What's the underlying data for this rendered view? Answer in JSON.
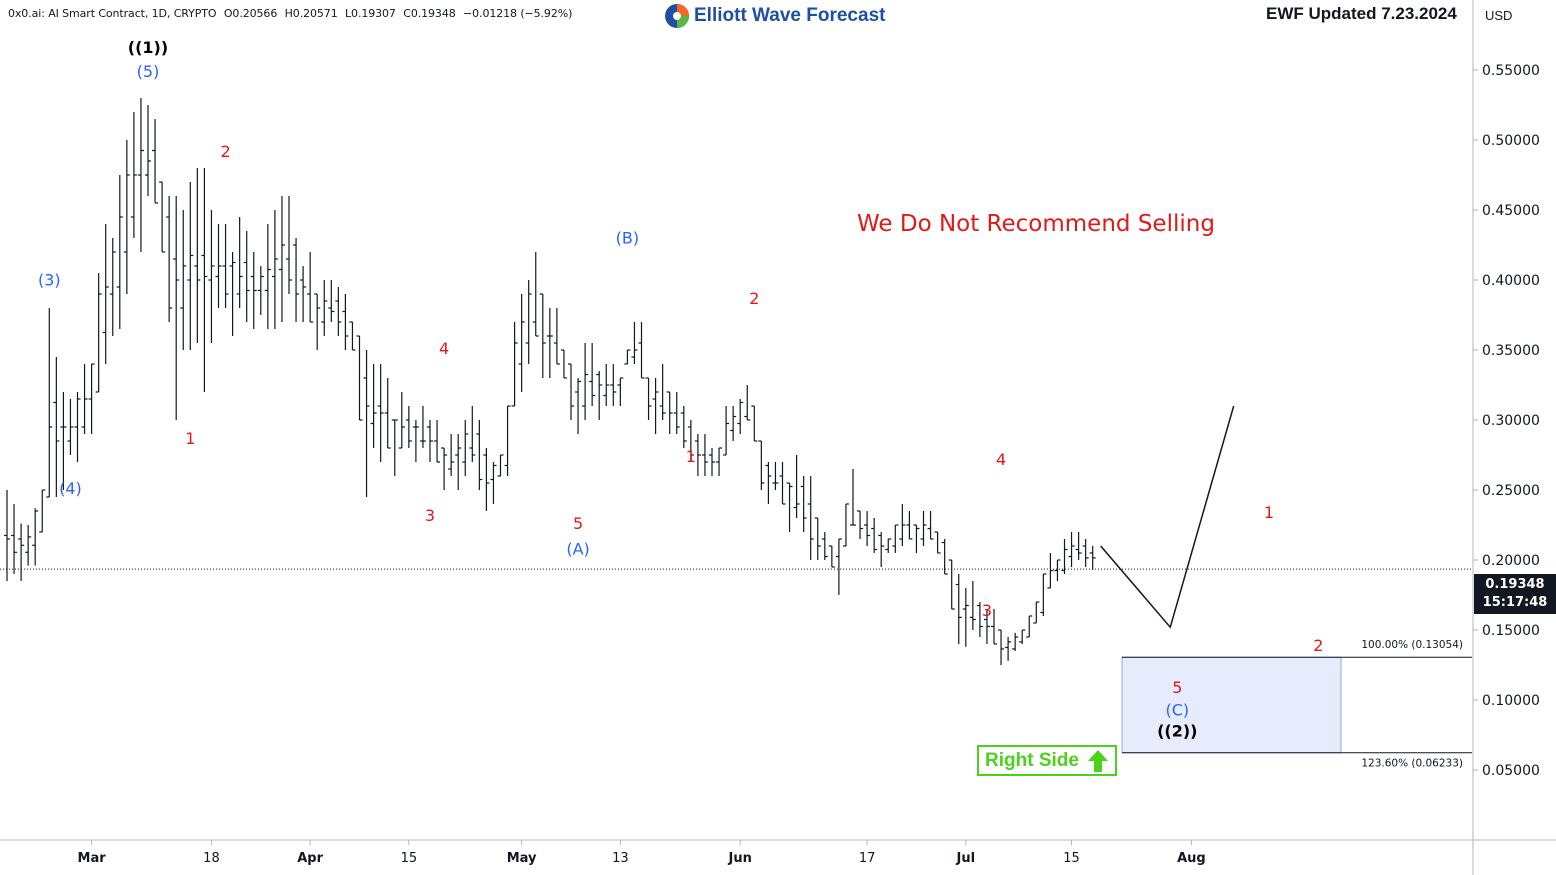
{
  "header": {
    "symbol": "0x0.ai: AI Smart Contract, 1D, CRYPTO",
    "open": "O0.20566",
    "high": "H0.20571",
    "low": "L0.19307",
    "close": "C0.19348",
    "change": "−0.01218 (−5.92%)"
  },
  "logo": {
    "text": "Elliott Wave Forecast",
    "icon": "ewf-swirl-logo-icon"
  },
  "updated_label": "EWF Updated 7.23.2024",
  "currency": "USD",
  "annotation": "We Do Not Recommend Selling",
  "right_side_label": "Right Side",
  "right_side_icon": "up-arrow-icon",
  "last_price": {
    "value": "0.19348",
    "countdown": "15:17:48"
  },
  "chart_data": {
    "type": "ohlc-bar",
    "title": "0x0.ai: AI Smart Contract, 1D, CRYPTO",
    "ylim": [
      0.0,
      0.58
    ],
    "y_ticks": [
      "0.05000",
      "0.10000",
      "0.15000",
      "0.20000",
      "0.25000",
      "0.30000",
      "0.35000",
      "0.40000",
      "0.45000",
      "0.50000",
      "0.55000"
    ],
    "x_ticks": [
      "Mar",
      "18",
      "Apr",
      "15",
      "May",
      "13",
      "Jun",
      "17",
      "Jul",
      "15",
      "Aug"
    ],
    "x_tick_days": [
      12,
      29,
      43,
      57,
      73,
      87,
      104,
      122,
      136,
      151,
      168
    ],
    "last_price_line": 0.19348,
    "series_high_low": [
      [
        0.25,
        0.185
      ],
      [
        0.24,
        0.19
      ],
      [
        0.226,
        0.185
      ],
      [
        0.225,
        0.196
      ],
      [
        0.237,
        0.196
      ],
      [
        0.25,
        0.22
      ],
      [
        0.38,
        0.245
      ],
      [
        0.345,
        0.245
      ],
      [
        0.32,
        0.25
      ],
      [
        0.315,
        0.275
      ],
      [
        0.32,
        0.27
      ],
      [
        0.34,
        0.29
      ],
      [
        0.34,
        0.29
      ],
      [
        0.405,
        0.32
      ],
      [
        0.44,
        0.34
      ],
      [
        0.43,
        0.36
      ],
      [
        0.475,
        0.365
      ],
      [
        0.5,
        0.39
      ],
      [
        0.52,
        0.43
      ],
      [
        0.53,
        0.42
      ],
      [
        0.525,
        0.46
      ],
      [
        0.515,
        0.455
      ],
      [
        0.47,
        0.42
      ],
      [
        0.46,
        0.37
      ],
      [
        0.46,
        0.3
      ],
      [
        0.45,
        0.35
      ],
      [
        0.47,
        0.35
      ],
      [
        0.48,
        0.355
      ],
      [
        0.48,
        0.32
      ],
      [
        0.45,
        0.355
      ],
      [
        0.44,
        0.38
      ],
      [
        0.44,
        0.38
      ],
      [
        0.42,
        0.36
      ],
      [
        0.445,
        0.38
      ],
      [
        0.435,
        0.37
      ],
      [
        0.42,
        0.365
      ],
      [
        0.41,
        0.375
      ],
      [
        0.44,
        0.365
      ],
      [
        0.45,
        0.365
      ],
      [
        0.46,
        0.37
      ],
      [
        0.46,
        0.39
      ],
      [
        0.43,
        0.37
      ],
      [
        0.41,
        0.37
      ],
      [
        0.42,
        0.37
      ],
      [
        0.39,
        0.35
      ],
      [
        0.4,
        0.36
      ],
      [
        0.4,
        0.37
      ],
      [
        0.395,
        0.36
      ],
      [
        0.39,
        0.35
      ],
      [
        0.37,
        0.35
      ],
      [
        0.36,
        0.3
      ],
      [
        0.35,
        0.245
      ],
      [
        0.34,
        0.28
      ],
      [
        0.34,
        0.27
      ],
      [
        0.33,
        0.28
      ],
      [
        0.3,
        0.26
      ],
      [
        0.32,
        0.28
      ],
      [
        0.31,
        0.28
      ],
      [
        0.3,
        0.27
      ],
      [
        0.31,
        0.28
      ],
      [
        0.3,
        0.27
      ],
      [
        0.3,
        0.27
      ],
      [
        0.28,
        0.25
      ],
      [
        0.29,
        0.26
      ],
      [
        0.29,
        0.25
      ],
      [
        0.3,
        0.26
      ],
      [
        0.31,
        0.27
      ],
      [
        0.3,
        0.25
      ],
      [
        0.28,
        0.235
      ],
      [
        0.27,
        0.24
      ],
      [
        0.275,
        0.26
      ],
      [
        0.31,
        0.26
      ],
      [
        0.37,
        0.31
      ],
      [
        0.39,
        0.32
      ],
      [
        0.4,
        0.34
      ],
      [
        0.42,
        0.36
      ],
      [
        0.39,
        0.33
      ],
      [
        0.38,
        0.33
      ],
      [
        0.38,
        0.34
      ],
      [
        0.35,
        0.33
      ],
      [
        0.34,
        0.3
      ],
      [
        0.33,
        0.29
      ],
      [
        0.355,
        0.3
      ],
      [
        0.355,
        0.31
      ],
      [
        0.335,
        0.3
      ],
      [
        0.34,
        0.31
      ],
      [
        0.34,
        0.31
      ],
      [
        0.33,
        0.31
      ],
      [
        0.35,
        0.34
      ],
      [
        0.37,
        0.34
      ],
      [
        0.37,
        0.33
      ],
      [
        0.33,
        0.3
      ],
      [
        0.33,
        0.29
      ],
      [
        0.34,
        0.3
      ],
      [
        0.32,
        0.29
      ],
      [
        0.32,
        0.29
      ],
      [
        0.31,
        0.28
      ],
      [
        0.3,
        0.27
      ],
      [
        0.29,
        0.26
      ],
      [
        0.29,
        0.26
      ],
      [
        0.28,
        0.26
      ],
      [
        0.28,
        0.26
      ],
      [
        0.31,
        0.275
      ],
      [
        0.31,
        0.285
      ],
      [
        0.315,
        0.29
      ],
      [
        0.325,
        0.3
      ],
      [
        0.31,
        0.285
      ],
      [
        0.285,
        0.25
      ],
      [
        0.27,
        0.24
      ],
      [
        0.27,
        0.25
      ],
      [
        0.27,
        0.24
      ],
      [
        0.255,
        0.22
      ],
      [
        0.275,
        0.23
      ],
      [
        0.26,
        0.22
      ],
      [
        0.26,
        0.2
      ],
      [
        0.23,
        0.2
      ],
      [
        0.22,
        0.2
      ],
      [
        0.21,
        0.195
      ],
      [
        0.215,
        0.175
      ],
      [
        0.24,
        0.21
      ],
      [
        0.265,
        0.225
      ],
      [
        0.235,
        0.215
      ],
      [
        0.235,
        0.21
      ],
      [
        0.23,
        0.205
      ],
      [
        0.22,
        0.195
      ],
      [
        0.215,
        0.205
      ],
      [
        0.225,
        0.205
      ],
      [
        0.24,
        0.21
      ],
      [
        0.235,
        0.215
      ],
      [
        0.225,
        0.205
      ],
      [
        0.235,
        0.21
      ],
      [
        0.235,
        0.215
      ],
      [
        0.22,
        0.205
      ],
      [
        0.215,
        0.19
      ],
      [
        0.2,
        0.165
      ],
      [
        0.19,
        0.14
      ],
      [
        0.18,
        0.138
      ],
      [
        0.185,
        0.15
      ],
      [
        0.17,
        0.145
      ],
      [
        0.165,
        0.14
      ],
      [
        0.165,
        0.14
      ],
      [
        0.15,
        0.125
      ],
      [
        0.145,
        0.128
      ],
      [
        0.148,
        0.135
      ],
      [
        0.15,
        0.14
      ],
      [
        0.16,
        0.145
      ],
      [
        0.17,
        0.155
      ],
      [
        0.19,
        0.16
      ],
      [
        0.205,
        0.18
      ],
      [
        0.2,
        0.185
      ],
      [
        0.215,
        0.19
      ],
      [
        0.22,
        0.195
      ],
      [
        0.22,
        0.2
      ],
      [
        0.215,
        0.195
      ],
      [
        0.21,
        0.193
      ]
    ],
    "projection": [
      {
        "day": 159,
        "price": 0.21
      },
      {
        "day": 165,
        "price": 0.152
      },
      {
        "day": 174,
        "price": 0.31
      }
    ],
    "fib_zone": {
      "levels": [
        {
          "label": "100.00% (0.13054)",
          "price": 0.13054
        },
        {
          "label": "123.60% (0.06233)",
          "price": 0.06233
        }
      ]
    },
    "wave_labels": [
      {
        "text": "((1))",
        "day": 20,
        "price": 0.562,
        "color": "#000000"
      },
      {
        "text": "(5)",
        "day": 20,
        "price": 0.545,
        "color": "#2962ff"
      },
      {
        "text": "(3)",
        "day": 6,
        "price": 0.396,
        "color": "#2962ff"
      },
      {
        "text": "(4)",
        "day": 9,
        "price": 0.247,
        "color": "#2962ff"
      },
      {
        "text": "1",
        "day": 26,
        "price": 0.283,
        "color": "#e01a1a"
      },
      {
        "text": "2",
        "day": 31,
        "price": 0.488,
        "color": "#e01a1a"
      },
      {
        "text": "3",
        "day": 60,
        "price": 0.228,
        "color": "#e01a1a"
      },
      {
        "text": "4",
        "day": 62,
        "price": 0.347,
        "color": "#e01a1a"
      },
      {
        "text": "5",
        "day": 81,
        "price": 0.222,
        "color": "#e01a1a"
      },
      {
        "text": "(A)",
        "day": 81,
        "price": 0.204,
        "color": "#2962ff"
      },
      {
        "text": "(B)",
        "day": 88,
        "price": 0.426,
        "color": "#2962ff"
      },
      {
        "text": "1",
        "day": 97,
        "price": 0.27,
        "color": "#e01a1a"
      },
      {
        "text": "2",
        "day": 106,
        "price": 0.383,
        "color": "#e01a1a"
      },
      {
        "text": "3",
        "day": 139,
        "price": 0.16,
        "color": "#e01a1a"
      },
      {
        "text": "4",
        "day": 141,
        "price": 0.268,
        "color": "#e01a1a"
      },
      {
        "text": "5",
        "day": 166,
        "price": 0.105,
        "color": "#e01a1a"
      },
      {
        "text": "(C)",
        "day": 166,
        "price": 0.089,
        "color": "#2962ff"
      },
      {
        "text": "((2))",
        "day": 166,
        "price": 0.074,
        "color": "#000000"
      },
      {
        "text": "1",
        "day": 179,
        "price": 0.23,
        "color": "#e01a1a"
      },
      {
        "text": "2",
        "day": 186,
        "price": 0.135,
        "color": "#e01a1a"
      }
    ]
  }
}
